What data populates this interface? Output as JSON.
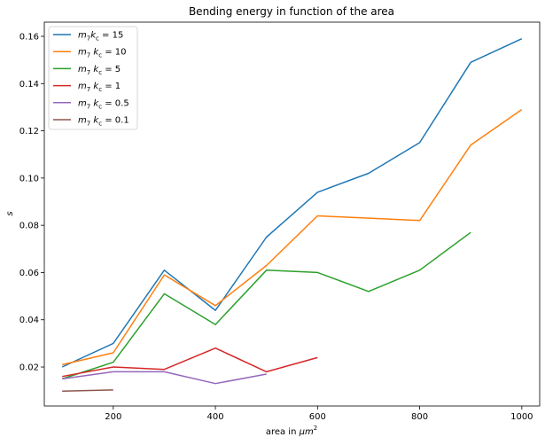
{
  "chart_data": {
    "type": "line",
    "title": "Bending energy in function of the area",
    "xlabel": {
      "text": "area in ",
      "unit": "μm",
      "exp": "2"
    },
    "ylabel": "s",
    "xlim": [
      65,
      1035
    ],
    "ylim": [
      0.0035,
      0.166
    ],
    "xticks": [
      200,
      400,
      600,
      800,
      1000
    ],
    "yticks": [
      0.02,
      0.04,
      0.06,
      0.08,
      0.1,
      0.12,
      0.14,
      0.16
    ],
    "ytick_labels": [
      "0.02",
      "0.04",
      "0.06",
      "0.08",
      "0.10",
      "0.12",
      "0.14",
      "0.16"
    ],
    "legend_position": "upper-left",
    "series": [
      {
        "name": "m7kc = 15",
        "legend": {
          "m": "m",
          "sub": "7",
          "k": "k",
          "ksub": "c",
          "rest": " = 15"
        },
        "color": "#1f77b4",
        "x": [
          100,
          200,
          300,
          400,
          500,
          600,
          700,
          800,
          900,
          1000
        ],
        "y": [
          0.02,
          0.03,
          0.061,
          0.044,
          0.075,
          0.094,
          0.102,
          0.115,
          0.149,
          0.159
        ]
      },
      {
        "name": "m7 kc = 10",
        "legend": {
          "m": "m",
          "sub": "7",
          "k": " k",
          "ksub": "c",
          "rest": " = 10"
        },
        "color": "#ff7f0e",
        "x": [
          100,
          200,
          300,
          400,
          500,
          600,
          800,
          900,
          1000
        ],
        "y": [
          0.021,
          0.026,
          0.059,
          0.046,
          0.063,
          0.084,
          0.082,
          0.114,
          0.129
        ]
      },
      {
        "name": "m7 kc = 5",
        "legend": {
          "m": "m",
          "sub": "7",
          "k": " k",
          "ksub": "c",
          "rest": " = 5"
        },
        "color": "#2ca02c",
        "x": [
          100,
          200,
          300,
          400,
          500,
          600,
          700,
          800,
          900
        ],
        "y": [
          0.015,
          0.022,
          0.051,
          0.038,
          0.061,
          0.06,
          0.052,
          0.061,
          0.077
        ]
      },
      {
        "name": "m7 kc = 1",
        "legend": {
          "m": "m",
          "sub": "7",
          "k": " k",
          "ksub": "c",
          "rest": " = 1"
        },
        "color": "#d62728",
        "x": [
          100,
          200,
          300,
          400,
          500,
          600
        ],
        "y": [
          0.016,
          0.02,
          0.019,
          0.028,
          0.018,
          0.024
        ]
      },
      {
        "name": "m7  kc = 0.5",
        "legend": {
          "m": "m",
          "sub": "7",
          "k": "  k",
          "ksub": "c",
          "rest": " = 0.5"
        },
        "color": "#9467bd",
        "x": [
          100,
          200,
          300,
          400,
          500
        ],
        "y": [
          0.015,
          0.018,
          0.018,
          0.013,
          0.017
        ]
      },
      {
        "name": "m7 kc = 0.1",
        "legend": {
          "m": "m",
          "sub": "7",
          "k": " k",
          "ksub": "c",
          "rest": " = 0.1"
        },
        "color": "#8c564b",
        "x": [
          100,
          200
        ],
        "y": [
          0.0098,
          0.0103
        ]
      }
    ]
  }
}
